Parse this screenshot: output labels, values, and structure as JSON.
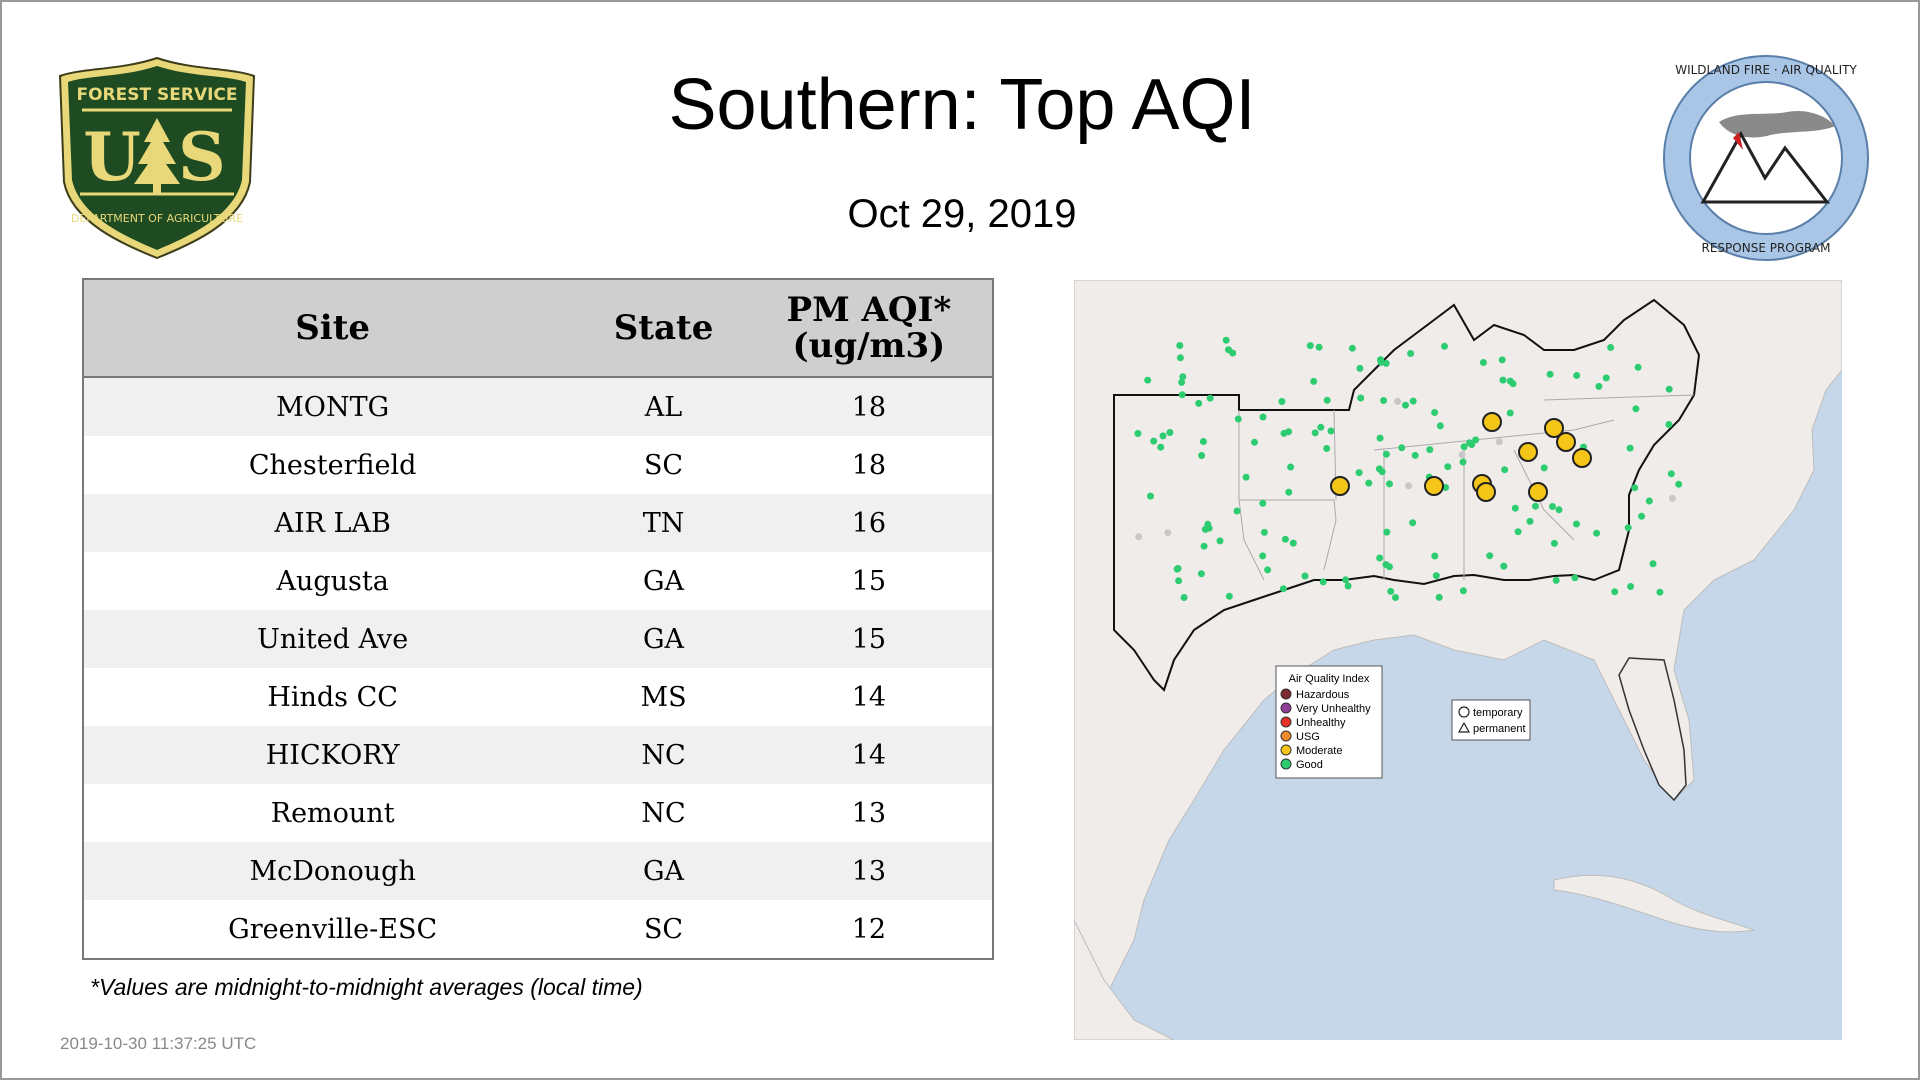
{
  "title": "Southern: Top AQI",
  "date": "Oct 29, 2019",
  "logos": {
    "forest_service": {
      "top": "FOREST SERVICE",
      "bottom": "DEPARTMENT OF AGRICULTURE",
      "letters": "U S"
    },
    "wildland": {
      "top": "WILDLAND FIRE · AIR QUALITY",
      "bottom": "RESPONSE PROGRAM"
    }
  },
  "table": {
    "headers": {
      "site": "Site",
      "state": "State",
      "pm_line1": "PM AQI*",
      "pm_line2": "(ug/m3)"
    },
    "rows": [
      {
        "site": "MONTG",
        "state": "AL",
        "value": "18"
      },
      {
        "site": "Chesterfield",
        "state": "SC",
        "value": "18"
      },
      {
        "site": "AIR LAB",
        "state": "TN",
        "value": "16"
      },
      {
        "site": "Augusta",
        "state": "GA",
        "value": "15"
      },
      {
        "site": "United Ave",
        "state": "GA",
        "value": "15"
      },
      {
        "site": "Hinds CC",
        "state": "MS",
        "value": "14"
      },
      {
        "site": "HICKORY",
        "state": "NC",
        "value": "14"
      },
      {
        "site": "Remount",
        "state": "NC",
        "value": "13"
      },
      {
        "site": "McDonough",
        "state": "GA",
        "value": "13"
      },
      {
        "site": "Greenville-ESC",
        "state": "SC",
        "value": "12"
      }
    ]
  },
  "footnote": "*Values are midnight-to-midnight averages (local time)",
  "timestamp": "2019-10-30 11:37:25 UTC",
  "map": {
    "legend": {
      "title": "Air Quality Index",
      "items": [
        {
          "label": "Hazardous",
          "color": "#7e2b30"
        },
        {
          "label": "Very Unhealthy",
          "color": "#8f3f97"
        },
        {
          "label": "Unhealthy",
          "color": "#e8302b"
        },
        {
          "label": "USG",
          "color": "#f08a2a"
        },
        {
          "label": "Moderate",
          "color": "#f5c518"
        },
        {
          "label": "Good",
          "color": "#2ecc71"
        }
      ]
    },
    "shape_legend": {
      "temporary": "temporary",
      "permanent": "permanent"
    },
    "colors": {
      "water": "#c5d7e8",
      "land": "#f0ecea",
      "good": "#2ecc71",
      "moderate": "#f5c518",
      "nodata": "#c8c8c8"
    }
  }
}
